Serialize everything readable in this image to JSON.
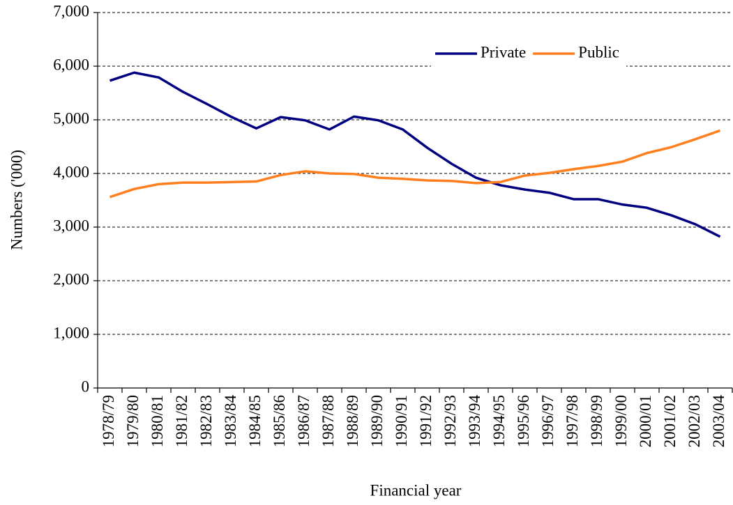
{
  "chart_data": {
    "type": "line",
    "x_label": "Financial year",
    "y_label": "Numbers ('000)",
    "categories": [
      "1978/79",
      "1979/80",
      "1980/81",
      "1981/82",
      "1982/83",
      "1983/84",
      "1984/85",
      "1985/86",
      "1986/87",
      "1987/88",
      "1988/89",
      "1989/90",
      "1990/91",
      "1991/92",
      "1992/93",
      "1993/94",
      "1994/95",
      "1995/96",
      "1996/97",
      "1997/98",
      "1998/99",
      "1999/00",
      "2000/01",
      "2001/02",
      "2002/03",
      "2003/04"
    ],
    "series": [
      {
        "name": "Private",
        "color": "#000080",
        "values": [
          5730,
          5880,
          5790,
          5520,
          5290,
          5050,
          4840,
          5050,
          4990,
          4820,
          5060,
          4990,
          4820,
          4480,
          4180,
          3920,
          3780,
          3700,
          3640,
          3520,
          3520,
          3420,
          3360,
          3220,
          3050,
          2820
        ]
      },
      {
        "name": "Public",
        "color": "#ff7f1e",
        "values": [
          3560,
          3710,
          3800,
          3830,
          3830,
          3840,
          3850,
          3970,
          4040,
          4000,
          3990,
          3920,
          3900,
          3870,
          3860,
          3820,
          3840,
          3960,
          4010,
          4080,
          4140,
          4220,
          4380,
          4490,
          4640,
          4800
        ]
      }
    ],
    "ylim": [
      0,
      7000
    ],
    "yticks": [
      0,
      {
        "value": 1000,
        "label": "1,000"
      },
      {
        "value": 2000,
        "label": "2,000"
      },
      {
        "value": 3000,
        "label": "3,000"
      },
      {
        "value": 4000,
        "label": "4,000"
      },
      {
        "value": 5000,
        "label": "5,000"
      },
      {
        "value": 6000,
        "label": "6,000"
      },
      {
        "value": 7000,
        "label": "7,000"
      }
    ],
    "grid": true,
    "legend_position": "upper right"
  }
}
